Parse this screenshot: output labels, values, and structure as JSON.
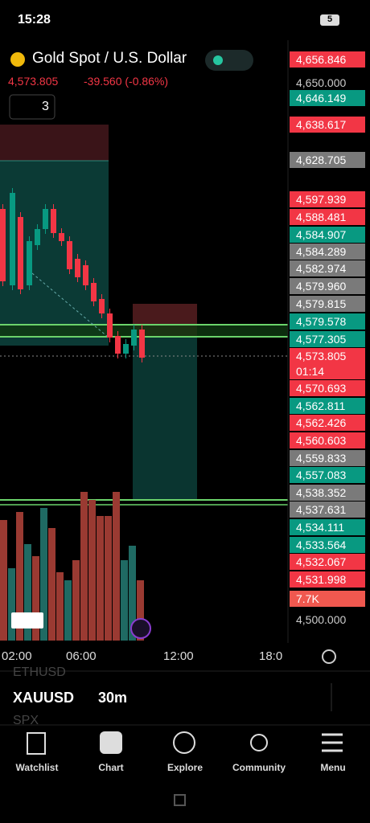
{
  "status": {
    "time": "15:28",
    "battery": "5"
  },
  "header": {
    "title": "Gold Spot / U.S. Dollar",
    "price": "4,573.805",
    "change": "-39.560 (-0.86%)",
    "indicators": "3"
  },
  "price_axis": [
    {
      "text": "4,656.846",
      "kind": "red"
    },
    {
      "text": "4,650.000",
      "kind": "plain"
    },
    {
      "text": "4,646.149",
      "kind": "green"
    },
    {
      "text": "4,638.617",
      "kind": "red"
    },
    {
      "text": "4,628.705",
      "kind": "gray"
    },
    {
      "text": "4,597.939",
      "kind": "red"
    },
    {
      "text": "4,588.481",
      "kind": "red"
    },
    {
      "text": "4,584.907",
      "kind": "green"
    },
    {
      "text": "4,584.289",
      "kind": "gray"
    },
    {
      "text": "4,582.974",
      "kind": "gray"
    },
    {
      "text": "4,579.960",
      "kind": "gray"
    },
    {
      "text": "4,579.815",
      "kind": "gray"
    },
    {
      "text": "4,579.578",
      "kind": "green"
    },
    {
      "text": "4,577.305",
      "kind": "green"
    },
    {
      "text": "4,573.805",
      "kind": "red"
    },
    {
      "text": "01:14",
      "kind": "red"
    },
    {
      "text": "4,570.693",
      "kind": "red"
    },
    {
      "text": "4,562.811",
      "kind": "green"
    },
    {
      "text": "4,562.426",
      "kind": "red"
    },
    {
      "text": "4,560.603",
      "kind": "red"
    },
    {
      "text": "4,559.833",
      "kind": "gray"
    },
    {
      "text": "4,557.083",
      "kind": "green"
    },
    {
      "text": "4,538.352",
      "kind": "gray"
    },
    {
      "text": "4,537.631",
      "kind": "gray"
    },
    {
      "text": "4,534.111",
      "kind": "green"
    },
    {
      "text": "4,533.564",
      "kind": "green"
    },
    {
      "text": "4,532.067",
      "kind": "red"
    },
    {
      "text": "4,531.998",
      "kind": "red"
    },
    {
      "text": "7.7K",
      "kind": "vol"
    },
    {
      "text": "4,500.000",
      "kind": "plain"
    }
  ],
  "time_axis": [
    "02:00",
    "06:00",
    "12:00",
    "18:0"
  ],
  "toolbar": {
    "symbol": "XAUUSD",
    "interval": "30m",
    "ghost_above": "ETHUSD",
    "ghost_below": "SPX"
  },
  "nav": [
    "Watchlist",
    "Chart",
    "Explore",
    "Community",
    "Menu"
  ]
}
